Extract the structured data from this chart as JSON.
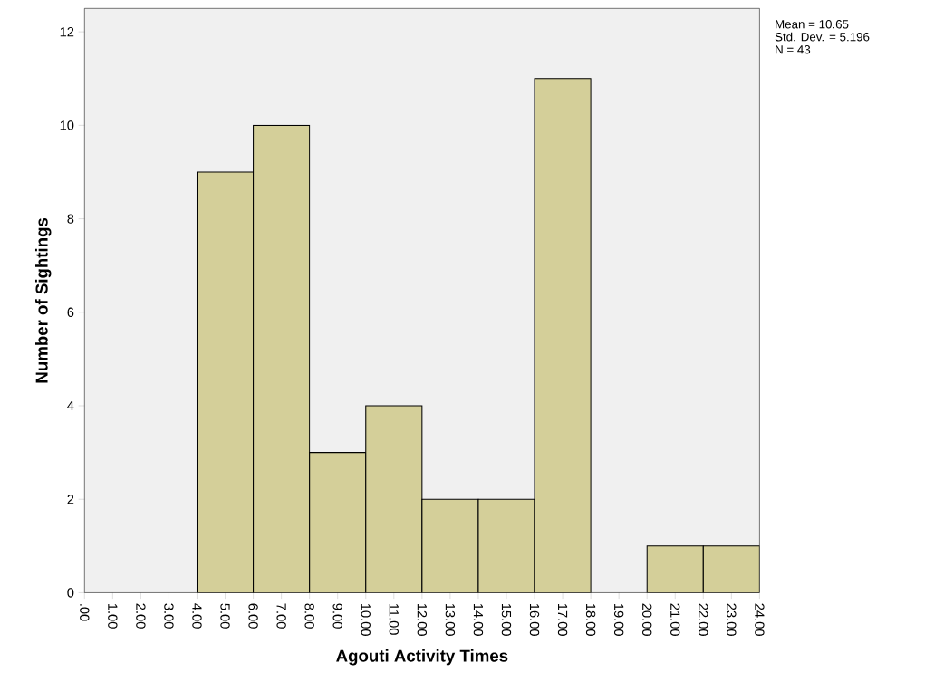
{
  "chart_data": {
    "type": "histogram",
    "xlabel": "Agouti Activity Times",
    "ylabel": "Number of Sightings",
    "bins": [
      0,
      2,
      4,
      6,
      8,
      10,
      12,
      14,
      16,
      18,
      20,
      22,
      24
    ],
    "values": [
      0,
      0,
      9,
      10,
      3,
      4,
      2,
      2,
      11,
      0,
      1,
      1
    ],
    "color": "#d4cf99",
    "xlim": [
      0,
      24
    ],
    "ylim": [
      0,
      12.5
    ],
    "xticks": [
      {
        "value": 0,
        "label": ".00"
      },
      {
        "value": 1,
        "label": "1.00"
      },
      {
        "value": 2,
        "label": "2.00"
      },
      {
        "value": 3,
        "label": "3.00"
      },
      {
        "value": 4,
        "label": "4.00"
      },
      {
        "value": 5,
        "label": "5.00"
      },
      {
        "value": 6,
        "label": "6.00"
      },
      {
        "value": 7,
        "label": "7.00"
      },
      {
        "value": 8,
        "label": "8.00"
      },
      {
        "value": 9,
        "label": "9.00"
      },
      {
        "value": 10,
        "label": "10.00"
      },
      {
        "value": 11,
        "label": "11.00"
      },
      {
        "value": 12,
        "label": "12.00"
      },
      {
        "value": 13,
        "label": "13.00"
      },
      {
        "value": 14,
        "label": "14.00"
      },
      {
        "value": 15,
        "label": "15.00"
      },
      {
        "value": 16,
        "label": "16.00"
      },
      {
        "value": 17,
        "label": "17.00"
      },
      {
        "value": 18,
        "label": "18.00"
      },
      {
        "value": 19,
        "label": "19.00"
      },
      {
        "value": 20,
        "label": "20.00"
      },
      {
        "value": 21,
        "label": "21.00"
      },
      {
        "value": 22,
        "label": "22.00"
      },
      {
        "value": 23,
        "label": "23.00"
      },
      {
        "value": 24,
        "label": "24.00"
      }
    ],
    "yticks": [
      0,
      2,
      4,
      6,
      8,
      10,
      12
    ],
    "annotations": [
      "Mean = 10.65",
      "Std. Dev. = 5.196",
      "N = 43"
    ]
  }
}
